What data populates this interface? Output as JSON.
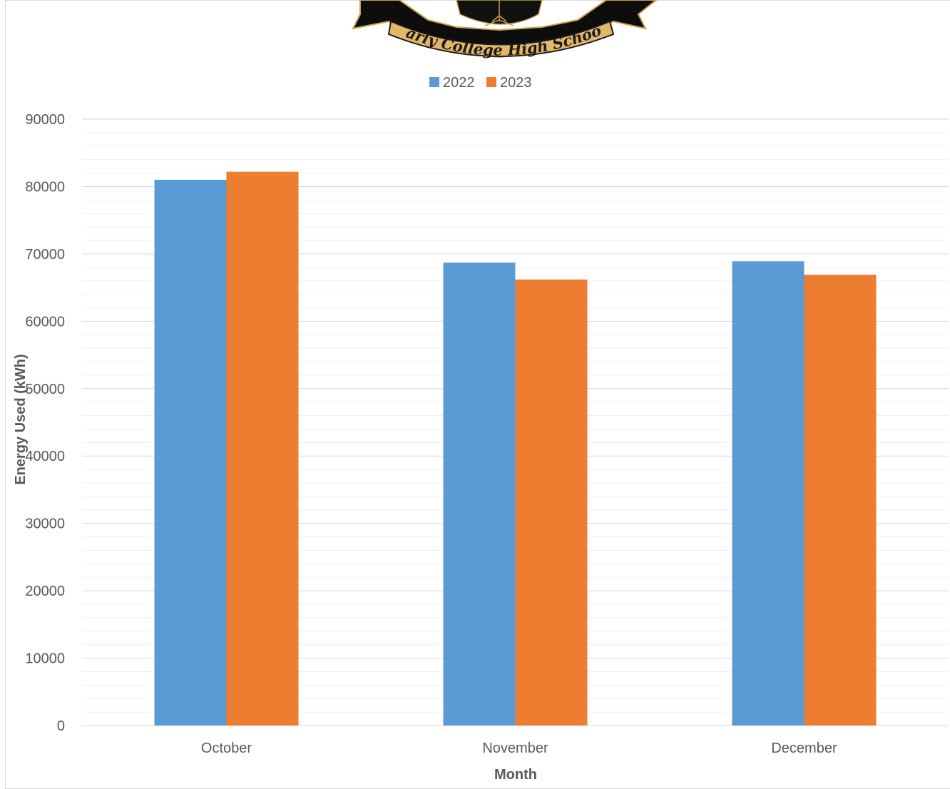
{
  "logo": {
    "text": "Early College High School"
  },
  "colors": {
    "series_2022": "#5b9bd5",
    "series_2023": "#ed7d31",
    "grid_major": "#d9d9d9",
    "grid_minor": "#f0f0f0",
    "text": "#595959"
  },
  "chart_data": {
    "type": "bar",
    "categories": [
      "October",
      "November",
      "December"
    ],
    "series": [
      {
        "name": "2022",
        "values": [
          81000,
          68700,
          68900
        ]
      },
      {
        "name": "2023",
        "values": [
          82200,
          66200,
          66900
        ]
      }
    ],
    "xlabel": "Month",
    "ylabel": "Energy Used (kWh)",
    "ylim": [
      0,
      90000
    ],
    "yticks": [
      0,
      10000,
      20000,
      30000,
      40000,
      50000,
      60000,
      70000,
      80000,
      90000
    ],
    "grid": true,
    "legend_position": "top"
  }
}
